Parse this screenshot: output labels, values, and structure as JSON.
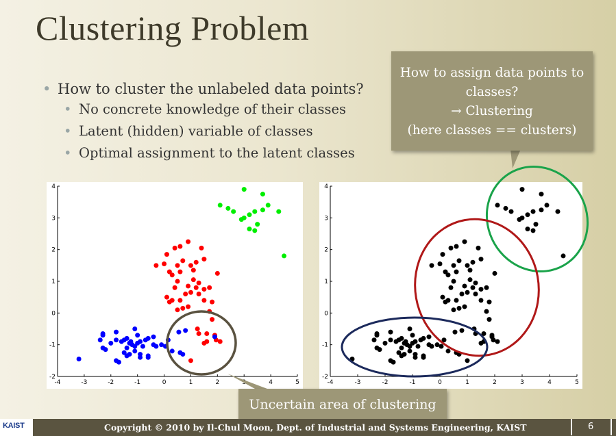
{
  "slide": {
    "title": "Clustering Problem",
    "bullets": {
      "main": "How to cluster the unlabeled data points?",
      "sub": [
        "No concrete knowledge of their classes",
        "Latent (hidden) variable of classes",
        "Optimal assignment to the latent classes"
      ]
    },
    "callout_top": [
      "How to assign data points to",
      "classes?",
      "→ Clustering",
      "(here classes == clusters)"
    ],
    "callout_bottom": "Uncertain area of clustering",
    "footer": {
      "logo": "KAIST",
      "copyright": "Copyright © 2010 by Il-Chul Moon, Dept. of Industrial and Systems Engineering, KAIST",
      "page_number": "6"
    },
    "colors": {
      "red_cluster": "#ff0000",
      "green_cluster": "#00ee00",
      "blue_cluster": "#0000ff",
      "black_points": "#000000",
      "ellipse_uncertain": "#5a5240",
      "ellipse_red": "#b01818",
      "ellipse_green": "#1aa34a",
      "ellipse_navy": "#1c2a5c"
    }
  },
  "chart_data": [
    {
      "type": "scatter",
      "title": "",
      "xlabel": "",
      "ylabel": "",
      "xlim": [
        -4,
        5
      ],
      "ylim": [
        -2,
        4
      ],
      "xticks": [
        -4,
        -3,
        -2,
        -1,
        0,
        1,
        2,
        3,
        4,
        5
      ],
      "yticks": [
        -2,
        -1,
        0,
        1,
        2,
        3,
        4
      ],
      "series": [
        {
          "color": "#00ee00",
          "points": [
            [
              2.1,
              3.4
            ],
            [
              2.4,
              3.3
            ],
            [
              2.6,
              3.2
            ],
            [
              2.9,
              2.95
            ],
            [
              3.0,
              3.0
            ],
            [
              3.2,
              3.1
            ],
            [
              3.4,
              3.2
            ],
            [
              3.7,
              3.25
            ],
            [
              3.5,
              2.8
            ],
            [
              3.0,
              3.9
            ],
            [
              3.7,
              3.75
            ],
            [
              3.9,
              3.4
            ],
            [
              4.3,
              3.2
            ],
            [
              3.2,
              2.65
            ],
            [
              3.4,
              2.6
            ],
            [
              4.5,
              1.8
            ]
          ]
        },
        {
          "color": "#ff0000",
          "points": [
            [
              0.9,
              2.25
            ],
            [
              0.6,
              2.1
            ],
            [
              0.4,
              2.05
            ],
            [
              0.1,
              1.85
            ],
            [
              1.4,
              2.05
            ],
            [
              -0.3,
              1.5
            ],
            [
              0.0,
              1.55
            ],
            [
              0.7,
              1.65
            ],
            [
              1.2,
              1.6
            ],
            [
              1.5,
              1.7
            ],
            [
              0.5,
              1.5
            ],
            [
              1.0,
              1.5
            ],
            [
              1.1,
              1.35
            ],
            [
              0.6,
              1.3
            ],
            [
              0.3,
              1.2
            ],
            [
              0.2,
              1.3
            ],
            [
              0.5,
              1.0
            ],
            [
              1.1,
              1.05
            ],
            [
              1.3,
              0.95
            ],
            [
              2.0,
              1.25
            ],
            [
              0.4,
              0.8
            ],
            [
              0.9,
              0.85
            ],
            [
              1.2,
              0.8
            ],
            [
              1.5,
              0.75
            ],
            [
              1.7,
              0.8
            ],
            [
              0.8,
              0.6
            ],
            [
              1.0,
              0.65
            ],
            [
              1.3,
              0.6
            ],
            [
              0.1,
              0.5
            ],
            [
              0.3,
              0.4
            ],
            [
              0.2,
              0.35
            ],
            [
              0.6,
              0.4
            ],
            [
              1.5,
              0.4
            ],
            [
              1.8,
              0.35
            ],
            [
              0.9,
              0.2
            ],
            [
              0.7,
              0.15
            ],
            [
              0.5,
              0.1
            ],
            [
              1.7,
              0.05
            ],
            [
              1.25,
              -0.5
            ],
            [
              1.3,
              -0.65
            ],
            [
              1.6,
              -0.65
            ],
            [
              1.9,
              -0.7
            ],
            [
              1.6,
              -0.9
            ],
            [
              2.1,
              -0.9
            ],
            [
              1.5,
              -0.95
            ],
            [
              1.0,
              -1.5
            ],
            [
              1.95,
              -0.85
            ],
            [
              1.8,
              -0.2
            ]
          ]
        },
        {
          "color": "#0000ff",
          "points": [
            [
              -2.3,
              -0.7
            ],
            [
              -2.4,
              -0.85
            ],
            [
              -1.8,
              -0.6
            ],
            [
              -1.4,
              -0.8
            ],
            [
              -1.1,
              -0.5
            ],
            [
              -1.0,
              -0.7
            ],
            [
              -0.6,
              -0.8
            ],
            [
              -0.9,
              -0.9
            ],
            [
              -1.25,
              -0.9
            ],
            [
              -1.5,
              -0.85
            ],
            [
              -1.3,
              -0.95
            ],
            [
              -1.2,
              -1.0
            ],
            [
              -1.1,
              -1.05
            ],
            [
              -1.0,
              -0.95
            ],
            [
              -0.7,
              -0.85
            ],
            [
              -0.4,
              -1.0
            ],
            [
              -0.8,
              -1.05
            ],
            [
              -1.1,
              -1.2
            ],
            [
              -1.4,
              -1.1
            ],
            [
              -1.6,
              -0.9
            ],
            [
              -0.1,
              -1.0
            ],
            [
              -0.3,
              -1.05
            ],
            [
              -2.3,
              -1.1
            ],
            [
              -2.2,
              -1.15
            ],
            [
              -1.8,
              -1.5
            ],
            [
              -1.7,
              -1.55
            ],
            [
              -1.5,
              -1.25
            ],
            [
              -1.3,
              -1.3
            ],
            [
              -0.9,
              -1.4
            ],
            [
              -0.6,
              -1.35
            ],
            [
              -0.6,
              -1.4
            ],
            [
              -0.9,
              -1.3
            ],
            [
              -3.2,
              -1.45
            ],
            [
              0.6,
              -1.25
            ],
            [
              0.7,
              -1.3
            ],
            [
              0.3,
              -1.2
            ],
            [
              0.55,
              -0.6
            ],
            [
              0.8,
              -0.55
            ],
            [
              0.15,
              -0.85
            ],
            [
              0.05,
              -1.05
            ],
            [
              -2.0,
              -0.95
            ],
            [
              -1.8,
              -0.85
            ],
            [
              -0.4,
              -0.75
            ],
            [
              -1.4,
              -1.35
            ],
            [
              -2.3,
              -0.65
            ],
            [
              1.9,
              -0.75
            ]
          ]
        }
      ]
    },
    {
      "type": "scatter",
      "title": "",
      "xlabel": "",
      "ylabel": "",
      "xlim": [
        -4,
        5
      ],
      "ylim": [
        -2,
        4
      ],
      "xticks": [
        -4,
        -3,
        -2,
        -1,
        0,
        1,
        2,
        3,
        4,
        5
      ],
      "yticks": [
        -2,
        -1,
        0,
        1,
        2,
        3,
        4
      ],
      "series": [
        {
          "color": "#000000",
          "points": [
            [
              2.1,
              3.4
            ],
            [
              2.4,
              3.3
            ],
            [
              2.6,
              3.2
            ],
            [
              2.9,
              2.95
            ],
            [
              3.0,
              3.0
            ],
            [
              3.2,
              3.1
            ],
            [
              3.4,
              3.2
            ],
            [
              3.7,
              3.25
            ],
            [
              3.5,
              2.8
            ],
            [
              3.0,
              3.9
            ],
            [
              3.7,
              3.75
            ],
            [
              3.9,
              3.4
            ],
            [
              4.3,
              3.2
            ],
            [
              3.2,
              2.65
            ],
            [
              3.4,
              2.6
            ],
            [
              4.5,
              1.8
            ],
            [
              0.9,
              2.25
            ],
            [
              0.6,
              2.1
            ],
            [
              0.4,
              2.05
            ],
            [
              0.1,
              1.85
            ],
            [
              1.4,
              2.05
            ],
            [
              -0.3,
              1.5
            ],
            [
              0.0,
              1.55
            ],
            [
              0.7,
              1.65
            ],
            [
              1.2,
              1.6
            ],
            [
              1.5,
              1.7
            ],
            [
              0.5,
              1.5
            ],
            [
              1.0,
              1.5
            ],
            [
              1.1,
              1.35
            ],
            [
              0.6,
              1.3
            ],
            [
              0.3,
              1.2
            ],
            [
              0.2,
              1.3
            ],
            [
              0.5,
              1.0
            ],
            [
              1.1,
              1.05
            ],
            [
              1.3,
              0.95
            ],
            [
              2.0,
              1.25
            ],
            [
              0.4,
              0.8
            ],
            [
              0.9,
              0.85
            ],
            [
              1.2,
              0.8
            ],
            [
              1.5,
              0.75
            ],
            [
              1.7,
              0.8
            ],
            [
              0.8,
              0.6
            ],
            [
              1.0,
              0.65
            ],
            [
              1.3,
              0.6
            ],
            [
              0.1,
              0.5
            ],
            [
              0.3,
              0.4
            ],
            [
              0.2,
              0.35
            ],
            [
              0.6,
              0.4
            ],
            [
              1.5,
              0.4
            ],
            [
              1.8,
              0.35
            ],
            [
              0.9,
              0.2
            ],
            [
              0.7,
              0.15
            ],
            [
              0.5,
              0.1
            ],
            [
              1.7,
              0.05
            ],
            [
              1.25,
              -0.5
            ],
            [
              1.3,
              -0.65
            ],
            [
              1.6,
              -0.65
            ],
            [
              1.9,
              -0.7
            ],
            [
              1.6,
              -0.9
            ],
            [
              2.1,
              -0.9
            ],
            [
              1.5,
              -0.95
            ],
            [
              1.0,
              -1.5
            ],
            [
              1.95,
              -0.85
            ],
            [
              1.8,
              -0.2
            ],
            [
              -2.3,
              -0.7
            ],
            [
              -2.4,
              -0.85
            ],
            [
              -1.8,
              -0.6
            ],
            [
              -1.4,
              -0.8
            ],
            [
              -1.1,
              -0.5
            ],
            [
              -1.0,
              -0.7
            ],
            [
              -0.6,
              -0.8
            ],
            [
              -0.9,
              -0.9
            ],
            [
              -1.25,
              -0.9
            ],
            [
              -1.5,
              -0.85
            ],
            [
              -1.3,
              -0.95
            ],
            [
              -1.2,
              -1.0
            ],
            [
              -1.1,
              -1.05
            ],
            [
              -1.0,
              -0.95
            ],
            [
              -0.7,
              -0.85
            ],
            [
              -0.4,
              -1.0
            ],
            [
              -0.8,
              -1.05
            ],
            [
              -1.1,
              -1.2
            ],
            [
              -1.4,
              -1.1
            ],
            [
              -1.6,
              -0.9
            ],
            [
              -0.1,
              -1.0
            ],
            [
              -0.3,
              -1.05
            ],
            [
              -2.3,
              -1.1
            ],
            [
              -2.2,
              -1.15
            ],
            [
              -1.8,
              -1.5
            ],
            [
              -1.7,
              -1.55
            ],
            [
              -1.5,
              -1.25
            ],
            [
              -1.3,
              -1.3
            ],
            [
              -0.9,
              -1.4
            ],
            [
              -0.6,
              -1.35
            ],
            [
              -0.6,
              -1.4
            ],
            [
              -0.9,
              -1.3
            ],
            [
              -3.2,
              -1.45
            ],
            [
              0.6,
              -1.25
            ],
            [
              0.7,
              -1.3
            ],
            [
              0.3,
              -1.2
            ],
            [
              0.55,
              -0.6
            ],
            [
              0.8,
              -0.55
            ],
            [
              0.15,
              -0.85
            ],
            [
              0.05,
              -1.05
            ],
            [
              -2.0,
              -0.95
            ],
            [
              -1.8,
              -0.85
            ],
            [
              -0.4,
              -0.75
            ],
            [
              -1.4,
              -1.35
            ],
            [
              -2.3,
              -0.65
            ],
            [
              1.9,
              -0.75
            ]
          ]
        }
      ]
    }
  ]
}
